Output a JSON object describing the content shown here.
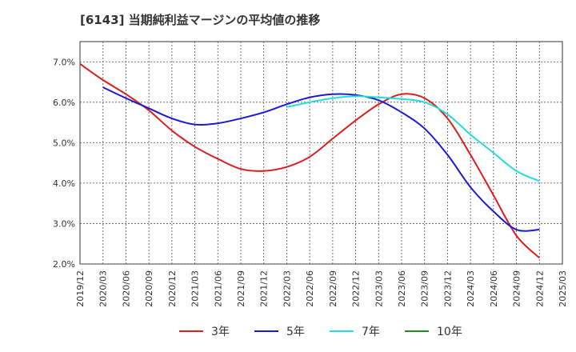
{
  "chart_data": {
    "type": "line",
    "title": "[6143]  当期純利益マージンの平均値の推移",
    "xlabel": "",
    "ylabel": "",
    "x": [
      "2019/12",
      "2020/03",
      "2020/06",
      "2020/09",
      "2020/12",
      "2021/03",
      "2021/06",
      "2021/09",
      "2021/12",
      "2022/03",
      "2022/06",
      "2022/09",
      "2022/12",
      "2023/03",
      "2023/06",
      "2023/09",
      "2023/12",
      "2024/03",
      "2024/06",
      "2024/09",
      "2024/12",
      "2025/03"
    ],
    "x_tick_labels": [
      "2019/12",
      "2020/03",
      "2020/06",
      "2020/09",
      "2020/12",
      "2021/03",
      "2021/06",
      "2021/09",
      "2021/12",
      "2022/03",
      "2022/06",
      "2022/09",
      "2022/12",
      "2023/03",
      "2023/06",
      "2023/09",
      "2023/12",
      "2024/03",
      "2024/06",
      "2024/09",
      "2024/12",
      "2025/03"
    ],
    "y_ticks": [
      2.0,
      3.0,
      4.0,
      5.0,
      6.0,
      7.0
    ],
    "y_tick_labels": [
      "2.0%",
      "3.0%",
      "4.0%",
      "5.0%",
      "6.0%",
      "7.0%"
    ],
    "ylim": [
      2.0,
      7.5
    ],
    "grid": true,
    "legend_position": "bottom",
    "series": [
      {
        "name": "3年",
        "color": "#dd1e1e",
        "x": [
          "2019/12",
          "2020/03",
          "2020/06",
          "2020/09",
          "2020/12",
          "2021/03",
          "2021/06",
          "2021/09",
          "2021/12",
          "2022/03",
          "2022/06",
          "2022/09",
          "2022/12",
          "2023/03",
          "2023/06",
          "2023/09",
          "2023/12",
          "2024/03",
          "2024/06",
          "2024/09",
          "2024/12"
        ],
        "values": [
          6.95,
          6.55,
          6.2,
          5.8,
          5.3,
          4.9,
          4.6,
          4.35,
          4.3,
          4.4,
          4.65,
          5.1,
          5.55,
          5.95,
          6.2,
          6.1,
          5.6,
          4.7,
          3.7,
          2.7,
          2.15
        ]
      },
      {
        "name": "5年",
        "color": "#1a1ad4",
        "x": [
          "2020/03",
          "2020/06",
          "2020/09",
          "2020/12",
          "2021/03",
          "2021/06",
          "2021/09",
          "2021/12",
          "2022/03",
          "2022/06",
          "2022/09",
          "2022/12",
          "2023/03",
          "2023/06",
          "2023/09",
          "2023/12",
          "2024/03",
          "2024/06",
          "2024/09",
          "2024/12"
        ],
        "values": [
          6.37,
          6.1,
          5.85,
          5.6,
          5.45,
          5.48,
          5.6,
          5.75,
          5.95,
          6.12,
          6.2,
          6.18,
          6.05,
          5.75,
          5.35,
          4.7,
          3.9,
          3.3,
          2.85,
          2.85
        ]
      },
      {
        "name": "7年",
        "color": "#22dddd",
        "x": [
          "2022/03",
          "2022/06",
          "2022/09",
          "2022/12",
          "2023/03",
          "2023/06",
          "2023/09",
          "2023/12",
          "2024/03",
          "2024/06",
          "2024/09",
          "2024/12"
        ],
        "values": [
          5.88,
          6.0,
          6.1,
          6.15,
          6.12,
          6.08,
          6.0,
          5.7,
          5.2,
          4.75,
          4.3,
          4.05
        ]
      },
      {
        "name": "10年",
        "color": "#228822",
        "x": [],
        "values": []
      }
    ]
  }
}
